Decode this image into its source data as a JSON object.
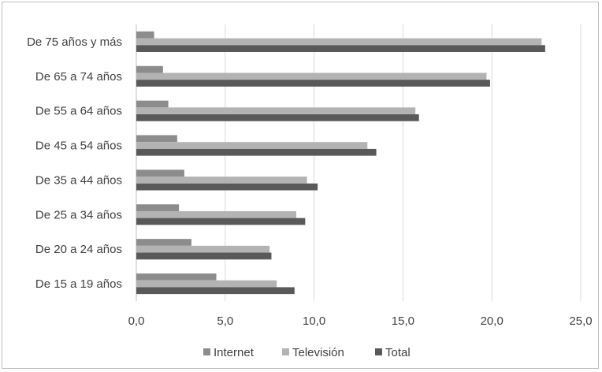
{
  "chart_data": {
    "type": "bar",
    "orientation": "horizontal",
    "categories": [
      "De 75 años y más",
      "De 65 a 74 años",
      "De 55 a 64 años",
      "De 45 a 54 años",
      "De 35 a 44 años",
      "De 25 a 34 años",
      "De 20 a 24 años",
      "De 15 a 19 años"
    ],
    "series": [
      {
        "name": "Internet",
        "color": "#8c8c8c",
        "values": [
          1.0,
          1.5,
          1.8,
          2.3,
          2.7,
          2.4,
          3.1,
          4.5
        ]
      },
      {
        "name": "Televisión",
        "color": "#b3b3b3",
        "values": [
          22.8,
          19.7,
          15.7,
          13.0,
          9.6,
          9.0,
          7.5,
          7.9
        ]
      },
      {
        "name": "Total",
        "color": "#595959",
        "values": [
          23.0,
          19.9,
          15.9,
          13.5,
          10.2,
          9.5,
          7.6,
          8.9
        ]
      }
    ],
    "xlim": [
      0,
      25
    ],
    "xticks": [
      "0,0",
      "5,0",
      "10,0",
      "15,0",
      "20,0",
      "25,0"
    ],
    "grid": true,
    "legend_position": "bottom"
  }
}
